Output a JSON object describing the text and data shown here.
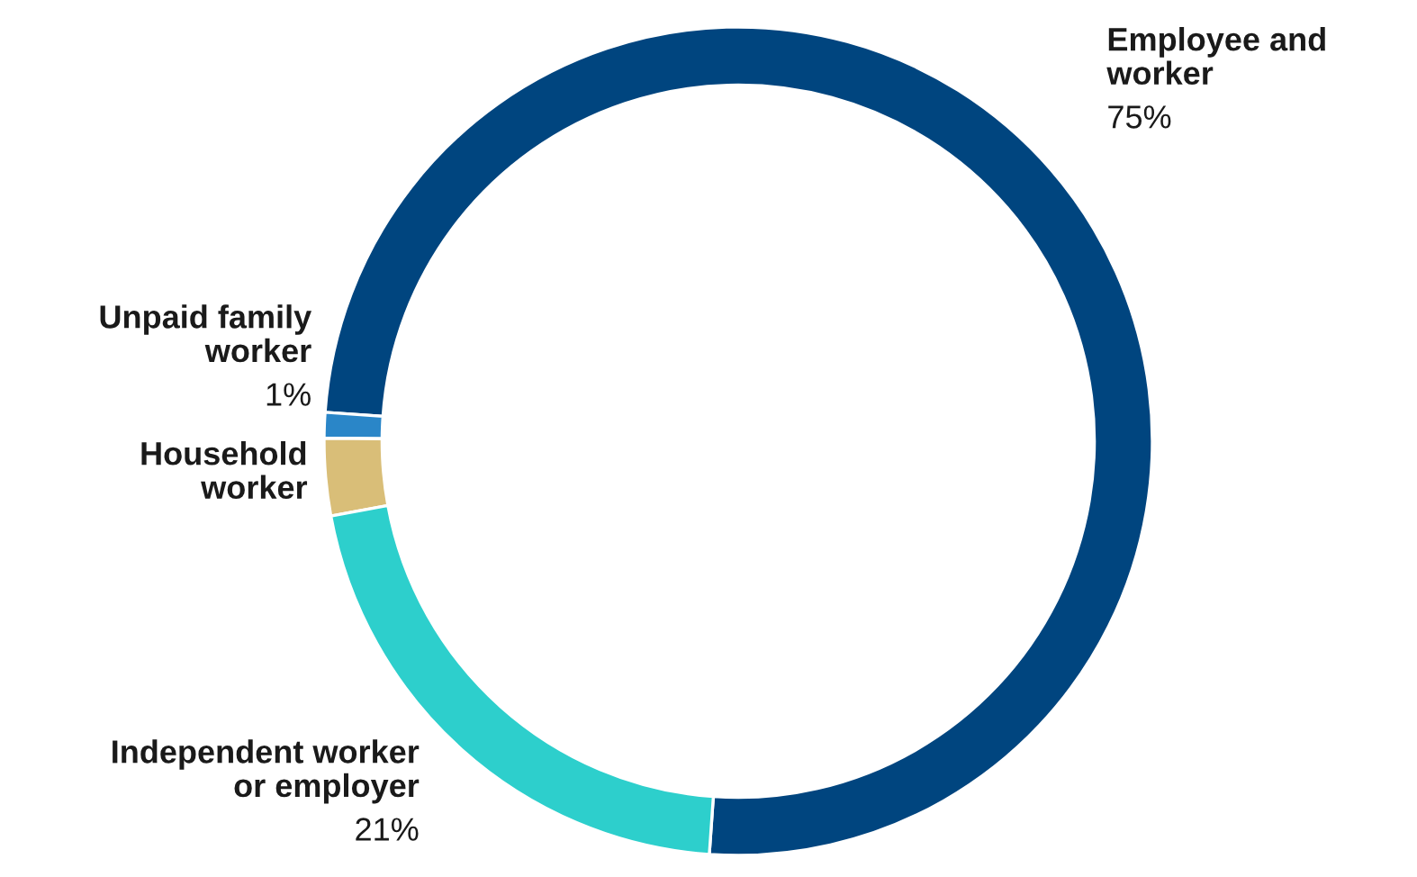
{
  "chart_data": {
    "type": "donut",
    "categories": [
      "Employee and\nworker",
      "Unpaid family\nworker",
      "Household\nworker",
      "Independent worker\nor employer"
    ],
    "values": [
      75,
      1,
      3,
      21
    ],
    "value_labels": [
      "75%",
      "1%",
      null,
      "21%"
    ],
    "colors": [
      "#00457f",
      "#2a86c8",
      "#d9be78",
      "#2dcfcc"
    ]
  }
}
